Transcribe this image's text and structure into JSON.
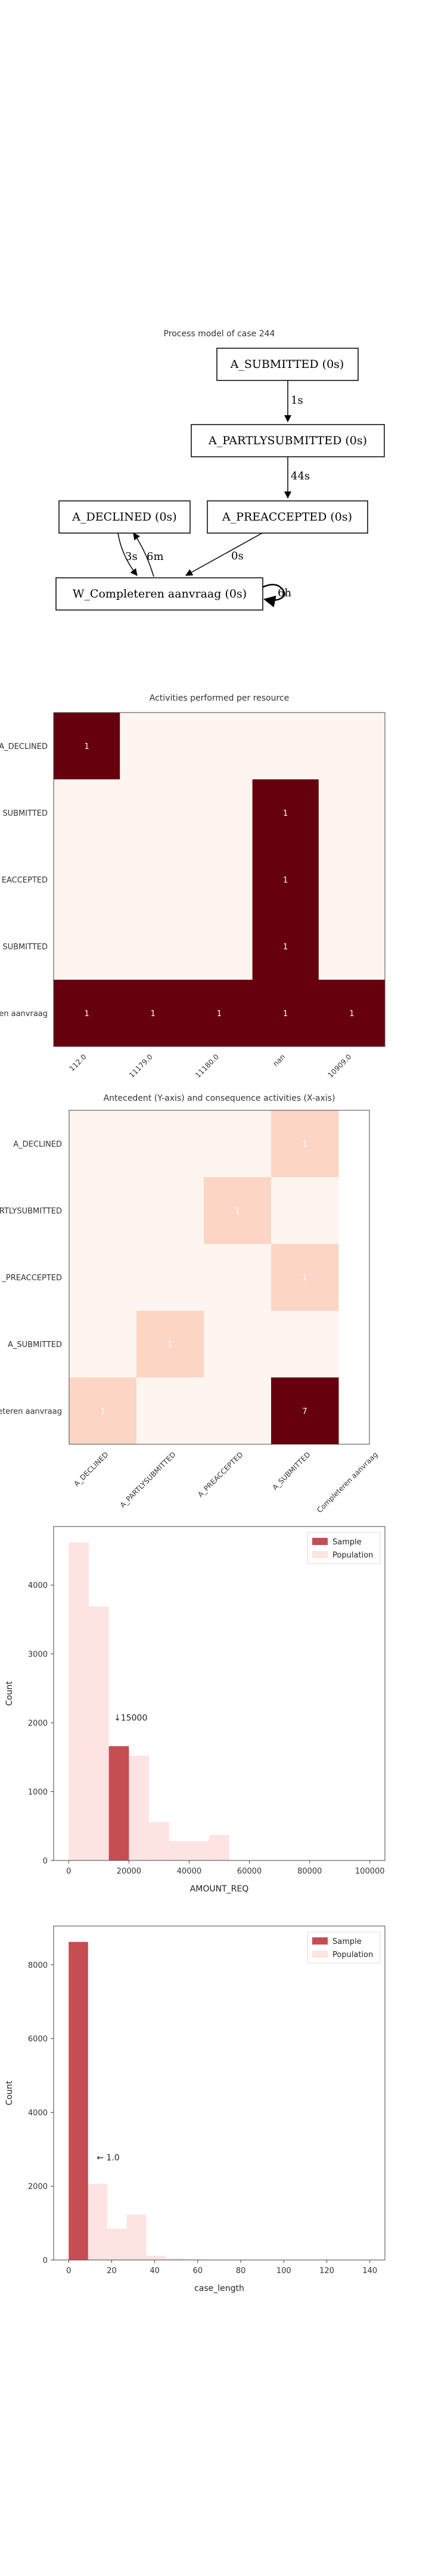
{
  "process_model": {
    "title": "Process model of case 244",
    "nodes": [
      {
        "id": "n1",
        "label": "A_SUBMITTED (0s)"
      },
      {
        "id": "n2",
        "label": "A_PARTLYSUBMITTED (0s)"
      },
      {
        "id": "n3",
        "label": "A_PREACCEPTED (0s)"
      },
      {
        "id": "n4",
        "label": "A_DECLINED (0s)"
      },
      {
        "id": "n5",
        "label": "W_Completeren aanvraag (0s)"
      }
    ],
    "edges": [
      {
        "from": "n1",
        "to": "n2",
        "label": "1s"
      },
      {
        "from": "n2",
        "to": "n3",
        "label": "44s"
      },
      {
        "from": "n3",
        "to": "n5",
        "label": "0s"
      },
      {
        "from": "n4",
        "to": "n5",
        "label": "3s"
      },
      {
        "from": "n5",
        "to": "n4",
        "label": "6m"
      },
      {
        "from": "n5",
        "to": "n5",
        "label": "6h"
      }
    ]
  },
  "chart_data": [
    {
      "type": "heatmap",
      "title": "Activities performed per resource",
      "y_labels": [
        "A_DECLINED",
        "A_SUBMITTED",
        "A_PREACCEPTED",
        "A_PARTLYSUBMITTED",
        "W_Completeren aanvraag"
      ],
      "y_labels_visible": [
        "A_DECLINED",
        "SUBMITTED",
        "EACCEPTED",
        "SUBMITTED",
        "en aanvraag"
      ],
      "x_labels": [
        "112.0",
        "11179.0",
        "11180.0",
        "nan",
        "10909.0"
      ],
      "values": [
        [
          1,
          0,
          0,
          0,
          0
        ],
        [
          0,
          0,
          0,
          1,
          0
        ],
        [
          0,
          0,
          0,
          1,
          0
        ],
        [
          0,
          0,
          0,
          1,
          0
        ],
        [
          1,
          1,
          1,
          1,
          1
        ]
      ],
      "colors": {
        "low": "#fff5f0",
        "high": "#67000d",
        "text": "#ffffff"
      }
    },
    {
      "type": "heatmap",
      "title": "Antecedent (Y-axis) and consequence activities (X-axis)",
      "y_labels": [
        "A_DECLINED",
        "A_PARTLYSUBMITTED",
        "A_PREACCEPTED",
        "A_SUBMITTED",
        "W_Completeren aanvraag"
      ],
      "y_labels_visible": [
        "A_DECLINED",
        "RTLYSUBMITTED",
        "_PREACCEPTED",
        "A_SUBMITTED",
        "eteren aanvraag"
      ],
      "x_labels": [
        "A_DECLINED",
        "A_PARTLYSUBMITTED",
        "A_PREACCEPTED",
        "A_SUBMITTED",
        "W_Completeren aanvraag"
      ],
      "x_labels_visible": [
        "A_DECLINED",
        "A_PARTLYSUBMITTED",
        "A_PREACCEPTED",
        "A_SUBMITTED",
        "Completeren aanvraag"
      ],
      "values": [
        [
          0,
          0,
          0,
          1,
          null
        ],
        [
          0,
          0,
          1,
          0,
          null
        ],
        [
          0,
          0,
          0,
          1,
          null
        ],
        [
          0,
          1,
          0,
          0,
          null
        ],
        [
          1,
          0,
          0,
          7,
          null
        ]
      ],
      "shades": [
        [
          0,
          0,
          0,
          2,
          null
        ],
        [
          0,
          0,
          2,
          1,
          null
        ],
        [
          0,
          0,
          0,
          2,
          null
        ],
        [
          0,
          2,
          0,
          0,
          null
        ],
        [
          2,
          0,
          0,
          9,
          null
        ]
      ],
      "colors": {
        "scale": [
          "#fff5f0",
          "#fff5f0",
          "#fcd5c4"
        ],
        "high": "#67000d",
        "text": "#ffffff"
      }
    },
    {
      "type": "bar",
      "xlabel": "AMOUNT_REQ",
      "ylabel": "Count",
      "xlim": [
        -5000,
        105000
      ],
      "ylim": [
        0,
        4850
      ],
      "x_ticks": [
        "0",
        "20000",
        "40000",
        "60000",
        "80000",
        "100000"
      ],
      "y_ticks": [
        "0",
        "1000",
        "2000",
        "3000",
        "4000"
      ],
      "bin_width": 6666,
      "population": {
        "name": "Population",
        "bins": [
          {
            "x": 0,
            "value": 4620
          },
          {
            "x": 6666,
            "value": 3690
          },
          {
            "x": 13333,
            "value": 1660
          },
          {
            "x": 20000,
            "value": 1520
          },
          {
            "x": 26666,
            "value": 560
          },
          {
            "x": 33333,
            "value": 280
          },
          {
            "x": 40000,
            "value": 280
          },
          {
            "x": 46666,
            "value": 370
          }
        ]
      },
      "sample": {
        "name": "Sample",
        "bins": [
          {
            "x": 13333,
            "value": 1660
          }
        ]
      },
      "annotation": "↓15000",
      "annotation_x": 15000,
      "annotation_y": 2030,
      "legend": [
        "Sample",
        "Population"
      ],
      "legend_position": "top-right",
      "colors": {
        "sample": "#c44e52",
        "population": "#fde3e1"
      }
    },
    {
      "type": "bar",
      "xlabel": "case_length",
      "ylabel": "Count",
      "xlim": [
        -7,
        147
      ],
      "ylim": [
        0,
        9050
      ],
      "x_ticks": [
        "0",
        "20",
        "40",
        "60",
        "80",
        "100",
        "120",
        "140"
      ],
      "y_ticks": [
        "0",
        "2000",
        "4000",
        "6000",
        "8000"
      ],
      "bin_width": 9,
      "population": {
        "name": "Population",
        "bins": [
          {
            "x": 0,
            "value": 8620
          },
          {
            "x": 9,
            "value": 2060
          },
          {
            "x": 18,
            "value": 850
          },
          {
            "x": 27,
            "value": 1230
          },
          {
            "x": 36,
            "value": 110
          },
          {
            "x": 45,
            "value": 40
          },
          {
            "x": 54,
            "value": 20
          }
        ]
      },
      "sample": {
        "name": "Sample",
        "bins": [
          {
            "x": 0,
            "value": 8620
          }
        ]
      },
      "annotation": "← 1.0",
      "annotation_x": 13,
      "annotation_y": 2700,
      "legend": [
        "Sample",
        "Population"
      ],
      "legend_position": "top-right",
      "colors": {
        "sample": "#c44e52",
        "population": "#fde3e1"
      }
    }
  ]
}
